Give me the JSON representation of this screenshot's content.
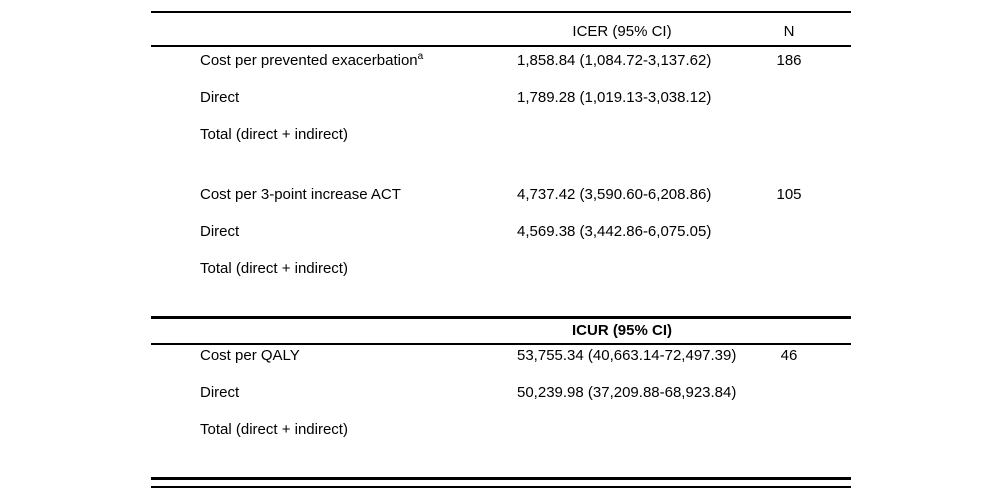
{
  "table": {
    "icer": {
      "col_header": "ICER (95% CI)",
      "n_header": "N",
      "rows": [
        {
          "label": "Cost per prevented exacerbation",
          "sup": "a",
          "value": "1,858.84 (1,084.72-3,137.62)",
          "n": "186"
        },
        {
          "label": "Direct",
          "sup": "",
          "value": "1,789.28 (1,019.13-3,038.12)",
          "n": ""
        },
        {
          "label": "Total (direct + indirect)",
          "sup": "",
          "value": "",
          "n": ""
        },
        {
          "label": "Cost per 3-point increase ACT",
          "sup": "",
          "value": "4,737.42 (3,590.60-6,208.86)",
          "n": "105"
        },
        {
          "label": "Direct",
          "sup": "",
          "value": "4,569.38 (3,442.86-6,075.05)",
          "n": ""
        },
        {
          "label": "Total (direct + indirect)",
          "sup": "",
          "value": "",
          "n": ""
        }
      ]
    },
    "icur": {
      "col_header": "ICUR (95% CI)",
      "rows": [
        {
          "label": "Cost per QALY",
          "value": "53,755.34 (40,663.14-72,497.39)",
          "n": "46"
        },
        {
          "label": "Direct",
          "value": "50,239.98 (37,209.88-68,923.84)",
          "n": ""
        },
        {
          "label": "Total (direct + indirect)",
          "value": "",
          "n": ""
        }
      ]
    },
    "colors": {
      "text": "#000000",
      "rule": "#000000",
      "background": "#ffffff"
    }
  }
}
